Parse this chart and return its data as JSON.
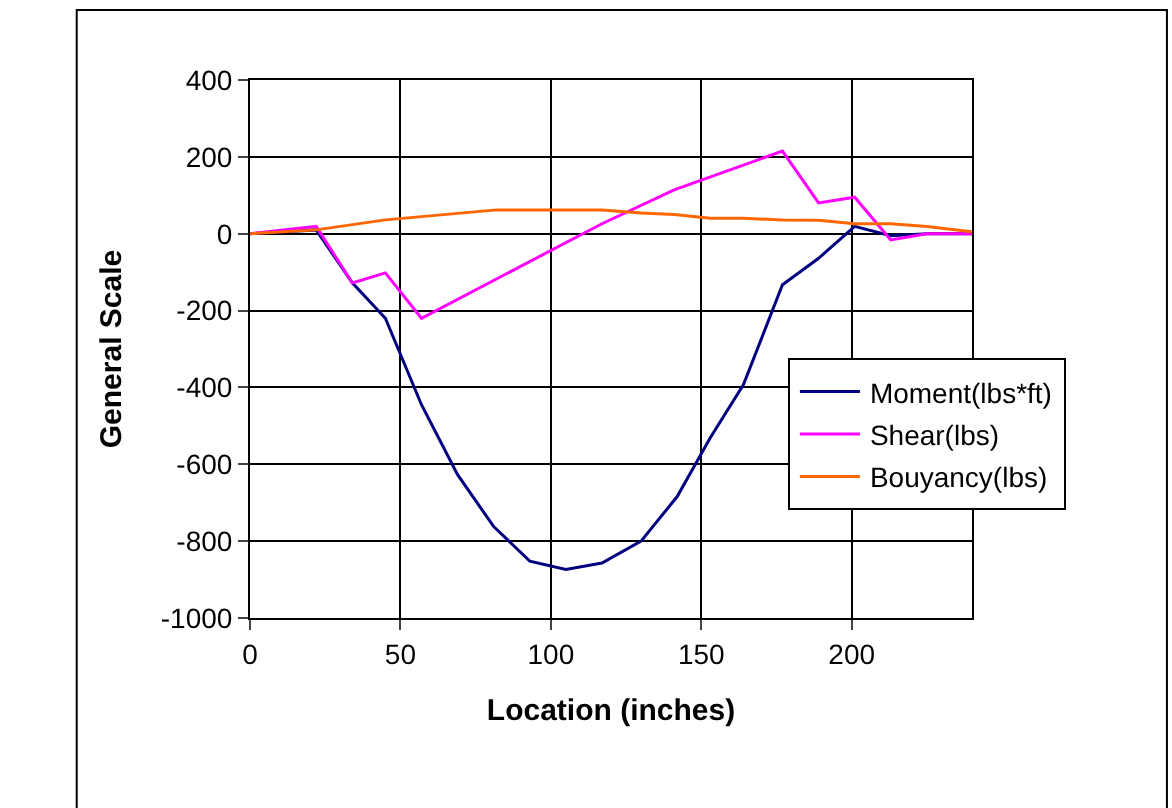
{
  "chart_data": {
    "type": "line",
    "xlabel": "Location (inches)",
    "ylabel": "General Scale",
    "xlim": [
      0,
      240
    ],
    "xticks": [
      0,
      50,
      100,
      150,
      200
    ],
    "ylim": [
      -1000,
      400
    ],
    "yticks": [
      -1000,
      -800,
      -600,
      -400,
      -200,
      0,
      200,
      400
    ],
    "grid": true,
    "legend": "right",
    "marker": "none",
    "line_style": "solid",
    "series": [
      {
        "name": "Moment(lbs*ft)",
        "color": "#000080",
        "x": [
          0,
          22,
          34,
          45,
          57,
          69,
          81,
          93,
          105,
          117,
          130,
          142,
          153,
          164,
          177,
          189,
          201,
          213,
          225,
          240
        ],
        "values": [
          0,
          10,
          -128,
          -220,
          -445,
          -627,
          -762,
          -852,
          -874,
          -857,
          -800,
          -684,
          -531,
          -393,
          -133,
          -64,
          19,
          -5,
          0,
          0
        ]
      },
      {
        "name": "Shear(lbs)",
        "color": "#ff00ff",
        "x": [
          0,
          22,
          34,
          45,
          57,
          117,
          141,
          177,
          189,
          201,
          213,
          225,
          240
        ],
        "values": [
          0,
          19,
          -128,
          -102,
          -220,
          26,
          114,
          215,
          80,
          95,
          -16,
          0,
          0
        ]
      },
      {
        "name": "Bouyancy(lbs)",
        "color": "#ff6600",
        "x": [
          0,
          22,
          45,
          82,
          117,
          130,
          141,
          153,
          164,
          177,
          189,
          201,
          213,
          225,
          240
        ],
        "values": [
          0,
          10,
          36,
          62,
          62,
          54,
          50,
          40,
          40,
          36,
          35,
          26,
          26,
          19,
          5
        ]
      }
    ]
  }
}
